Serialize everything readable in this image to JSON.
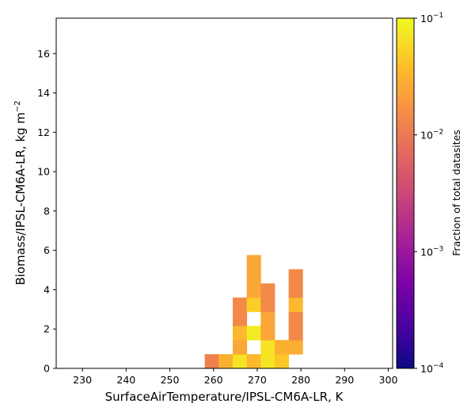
{
  "chart_data": {
    "type": "heatmap",
    "title": "",
    "xlabel": "SurfaceAirTemperature/IPSL-CM6A-LR,  K",
    "ylabel_main": "Biomass/IPSL-CM6A-LR,  kg m",
    "ylabel_sup": "−2",
    "xlim": [
      224,
      301
    ],
    "ylim": [
      0,
      17.8
    ],
    "xticks": [
      230,
      240,
      250,
      260,
      270,
      280,
      290,
      300
    ],
    "yticks": [
      0,
      2,
      4,
      6,
      8,
      10,
      12,
      14,
      16
    ],
    "bin_width_x": 3.2,
    "bin_height_y": 0.72,
    "cells": [
      {
        "x": 258.0,
        "y": 0.0,
        "value": 0.012
      },
      {
        "x": 261.2,
        "y": 0.0,
        "value": 0.03
      },
      {
        "x": 264.4,
        "y": 0.0,
        "value": 0.07
      },
      {
        "x": 267.6,
        "y": 0.0,
        "value": 0.035
      },
      {
        "x": 270.8,
        "y": 0.0,
        "value": 0.07
      },
      {
        "x": 274.0,
        "y": 0.0,
        "value": 0.045
      },
      {
        "x": 264.4,
        "y": 0.72,
        "value": 0.025
      },
      {
        "x": 270.8,
        "y": 0.72,
        "value": 0.07
      },
      {
        "x": 274.0,
        "y": 0.72,
        "value": 0.03
      },
      {
        "x": 277.2,
        "y": 0.72,
        "value": 0.028
      },
      {
        "x": 264.4,
        "y": 1.44,
        "value": 0.035
      },
      {
        "x": 267.6,
        "y": 1.44,
        "value": 0.08
      },
      {
        "x": 270.8,
        "y": 1.44,
        "value": 0.025
      },
      {
        "x": 277.2,
        "y": 1.44,
        "value": 0.014
      },
      {
        "x": 264.4,
        "y": 2.16,
        "value": 0.014
      },
      {
        "x": 270.8,
        "y": 2.16,
        "value": 0.025
      },
      {
        "x": 277.2,
        "y": 2.16,
        "value": 0.014
      },
      {
        "x": 264.4,
        "y": 2.88,
        "value": 0.014
      },
      {
        "x": 267.6,
        "y": 2.88,
        "value": 0.05
      },
      {
        "x": 270.8,
        "y": 2.88,
        "value": 0.014
      },
      {
        "x": 277.2,
        "y": 2.88,
        "value": 0.035
      },
      {
        "x": 267.6,
        "y": 3.6,
        "value": 0.025
      },
      {
        "x": 270.8,
        "y": 3.6,
        "value": 0.014
      },
      {
        "x": 277.2,
        "y": 3.6,
        "value": 0.014
      },
      {
        "x": 267.6,
        "y": 4.32,
        "value": 0.025
      },
      {
        "x": 277.2,
        "y": 4.32,
        "value": 0.014
      },
      {
        "x": 267.6,
        "y": 5.04,
        "value": 0.025
      }
    ],
    "colorbar": {
      "label": "Fraction of total datasites",
      "scale": "log",
      "range": [
        0.0001,
        0.1
      ],
      "ticks": [
        {
          "value": 0.1,
          "base": "10",
          "exp": "−1"
        },
        {
          "value": 0.01,
          "base": "10",
          "exp": "−2"
        },
        {
          "value": 0.001,
          "base": "10",
          "exp": "−3"
        },
        {
          "value": 0.0001,
          "base": "10",
          "exp": "−4"
        }
      ],
      "colormap": "plasma"
    }
  }
}
